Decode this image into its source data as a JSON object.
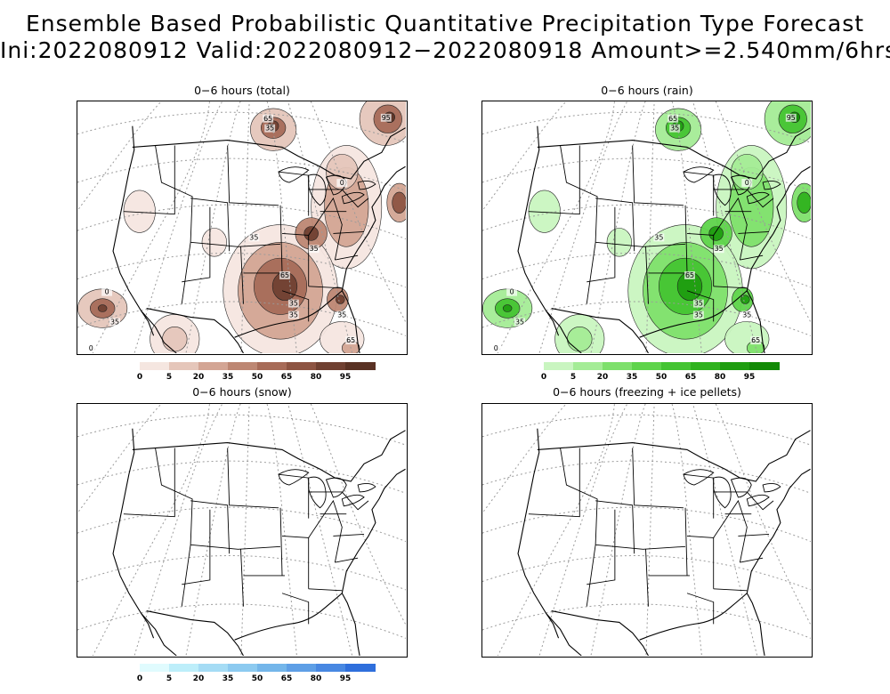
{
  "figure": {
    "title_line1": "Ensemble Based Probabilistic Quantitative Precipitation Type Forecast",
    "title_line2": "Ini:2022080912 Valid:2022080912−2022080918 Amount>=2.540mm/6hrs"
  },
  "panels": [
    {
      "id": "total",
      "title": "0−6 hours (total)",
      "colors": [
        "#f5e6e0",
        "#e5c6ba",
        "#d3a594",
        "#bd8773",
        "#a76b58",
        "#8d5442",
        "#704031",
        "#5a3224"
      ],
      "contour_labels": [
        "65",
        "35",
        "95",
        "0",
        "35",
        "35",
        "65",
        "35",
        "35",
        "35",
        "65",
        "0",
        "35",
        "0"
      ],
      "colorbar": {
        "ticks": [
          "0",
          "5",
          "20",
          "35",
          "50",
          "65",
          "80",
          "95"
        ],
        "colors": [
          "#f5e6e0",
          "#e5c6ba",
          "#d3a594",
          "#bd8773",
          "#a76b58",
          "#8d5442",
          "#704031",
          "#5a3224"
        ]
      }
    },
    {
      "id": "rain",
      "title": "0−6 hours (rain)",
      "colors": [
        "#c9f5c0",
        "#a4ec96",
        "#7ee06c",
        "#5ed44b",
        "#44c432",
        "#2fb21e",
        "#1f9d10",
        "#138a06"
      ],
      "contour_labels": [
        "65",
        "35",
        "95",
        "0",
        "35",
        "35",
        "65",
        "35",
        "35",
        "35",
        "65",
        "0",
        "35",
        "0"
      ],
      "colorbar": {
        "ticks": [
          "0",
          "5",
          "20",
          "35",
          "50",
          "65",
          "80",
          "95"
        ],
        "colors": [
          "#c9f5c0",
          "#a4ec96",
          "#7ee06c",
          "#5ed44b",
          "#44c432",
          "#2fb21e",
          "#1f9d10",
          "#138a06"
        ]
      }
    },
    {
      "id": "snow",
      "title": "0−6 hours (snow)",
      "colorbar": {
        "ticks": [
          "0",
          "5",
          "20",
          "35",
          "50",
          "65",
          "80",
          "95"
        ],
        "colors": [
          "#e0fbfe",
          "#bdeefa",
          "#a5dcf5",
          "#8ccaf0",
          "#74b6ea",
          "#5e9fe6",
          "#4888e2",
          "#2f6fdc"
        ]
      }
    },
    {
      "id": "freezing",
      "title": "0−6 hours (freezing + ice pellets)"
    }
  ]
}
